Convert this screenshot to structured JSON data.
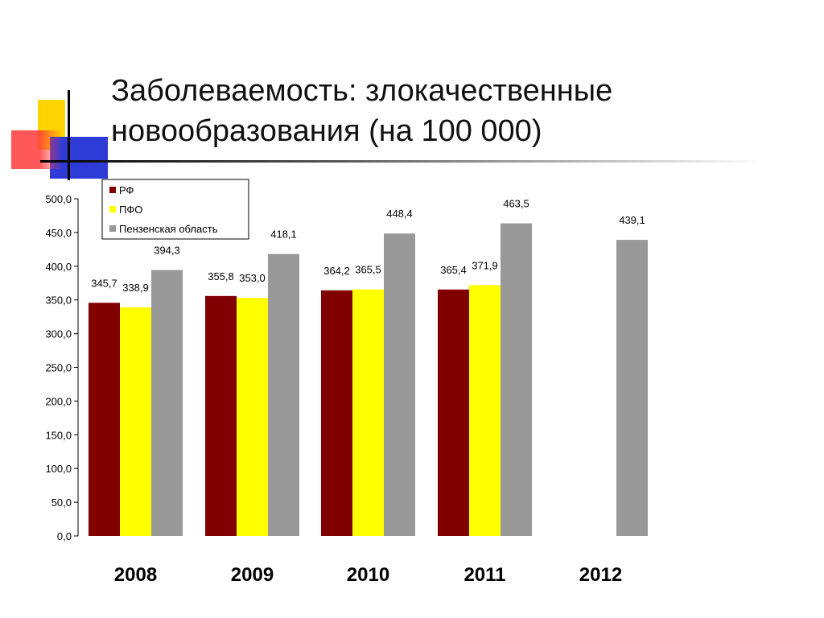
{
  "slide": {
    "title_line1": "Заболеваемость: злокачественные",
    "title_line2": "новообразования (на 100 000)"
  },
  "colors": {
    "deco_yellow": "#FFD400",
    "deco_red": "#FF3B3B",
    "deco_blue": "#2E3BD6",
    "deco_line": "#000000"
  },
  "chart_data": {
    "type": "bar",
    "title": "",
    "xlabel": "",
    "ylabel": "",
    "ylim": [
      0,
      500
    ],
    "ytick_step": 50,
    "ytick_labels": [
      "0,0",
      "50,0",
      "100,0",
      "150,0",
      "200,0",
      "250,0",
      "300,0",
      "350,0",
      "400,0",
      "450,0",
      "500,0"
    ],
    "categories": [
      "2008",
      "2009",
      "2010",
      "2011",
      "2012"
    ],
    "legend_position": "top-left",
    "grid": false,
    "series": [
      {
        "name": "РФ",
        "color": "#800000",
        "values": [
          345.7,
          355.8,
          364.2,
          365.4,
          null
        ],
        "labels": [
          "345,7",
          "355,8",
          "364,2",
          "365,4",
          ""
        ]
      },
      {
        "name": "ПФО",
        "color": "#FFFF00",
        "values": [
          338.9,
          353.0,
          365.5,
          371.9,
          null
        ],
        "labels": [
          "338,9",
          "353,0",
          "365,5",
          "371,9",
          ""
        ]
      },
      {
        "name": "Пензенская область",
        "color": "#999999",
        "values": [
          394.3,
          418.1,
          448.4,
          463.5,
          439.1
        ],
        "labels": [
          "394,3",
          "418,1",
          "448,4",
          "463,5",
          "439,1"
        ]
      }
    ]
  }
}
